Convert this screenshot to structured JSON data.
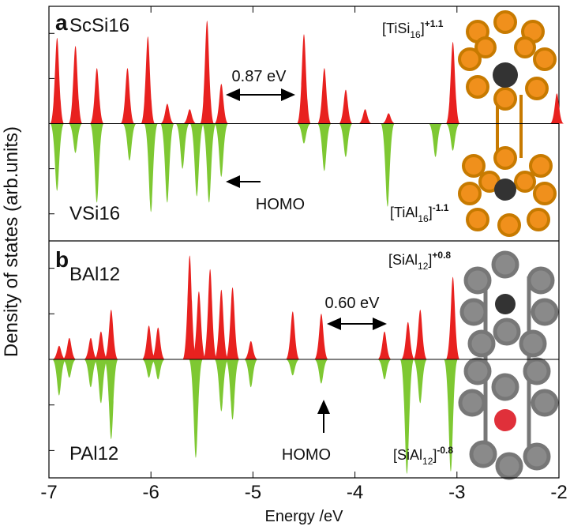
{
  "chart_data": [
    {
      "type": "area",
      "panel_label": "a",
      "xlim": [
        -7,
        -2
      ],
      "ylim": [
        -2.6,
        2.6
      ],
      "yticks": [
        -2,
        -1,
        1,
        2
      ],
      "series": [
        {
          "name": "ScSi16",
          "color": "#e8211f",
          "x": [
            -6.92,
            -6.74,
            -6.53,
            -6.23,
            -6.03,
            -5.84,
            -5.62,
            -5.45,
            -5.31,
            -4.5,
            -4.3,
            -4.09,
            -3.9,
            -3.67,
            -3.04,
            -2.02
          ],
          "values": [
            1.9,
            1.72,
            1.23,
            1.23,
            1.93,
            0.44,
            0.32,
            2.28,
            0.88,
            1.98,
            1.23,
            0.75,
            0.32,
            0.23,
            1.81,
            0.67
          ]
        },
        {
          "name": "VSi16",
          "color": "#7ec832",
          "x": [
            -6.92,
            -6.74,
            -6.53,
            -6.21,
            -6.0,
            -5.84,
            -5.69,
            -5.55,
            -5.43,
            -5.31,
            -4.5,
            -4.3,
            -4.09,
            -3.68,
            -3.21,
            -3.04
          ],
          "values": [
            -1.49,
            -0.65,
            -1.75,
            -0.82,
            -1.96,
            -1.75,
            -1.0,
            -1.61,
            -1.75,
            -1.18,
            -0.44,
            -1.05,
            -0.74,
            -1.84,
            -0.74,
            -0.6
          ]
        }
      ],
      "annotations": {
        "gap": "0.87 eV",
        "homo": "HOMO",
        "upper_formula": {
          "base": "[TiSi",
          "sub": "16",
          "end": "]",
          "sup": "+1.1"
        },
        "lower_formula": {
          "base": "[TiAl",
          "sub": "16",
          "end": "]",
          "sup": "-1.1"
        }
      },
      "ylabel": "Density of states (arb.units)"
    },
    {
      "type": "area",
      "panel_label": "b",
      "xlim": [
        -7,
        -2
      ],
      "ylim": [
        -2.6,
        2.6
      ],
      "yticks": [
        -2,
        -1,
        1,
        2
      ],
      "xticks": [
        -7,
        -6,
        -5,
        -4,
        -3,
        -2
      ],
      "xlabel": "Energy /eV",
      "series": [
        {
          "name": "BAl12",
          "color": "#e8211f",
          "x": [
            -6.9,
            -6.8,
            -6.59,
            -6.49,
            -6.39,
            -6.02,
            -5.93,
            -5.62,
            -5.53,
            -5.42,
            -5.31,
            -5.2,
            -5.02,
            -4.61,
            -4.33,
            -3.71,
            -3.48,
            -3.36,
            -3.04
          ],
          "values": [
            0.3,
            0.47,
            0.47,
            0.61,
            1.09,
            0.74,
            0.7,
            2.28,
            1.49,
            1.98,
            1.53,
            1.58,
            0.4,
            1.05,
            1.0,
            0.61,
            0.82,
            1.09,
            1.81
          ]
        },
        {
          "name": "PAl12",
          "color": "#7ec832",
          "x": [
            -6.9,
            -6.8,
            -6.59,
            -6.49,
            -6.39,
            -6.02,
            -5.93,
            -5.56,
            -5.31,
            -5.2,
            -5.02,
            -4.61,
            -4.33,
            -3.71,
            -3.49,
            -3.36,
            -3.06
          ],
          "values": [
            -0.79,
            -0.4,
            -0.61,
            -0.96,
            -1.75,
            -0.4,
            -0.44,
            -2.16,
            -1.14,
            -1.32,
            -0.61,
            -0.35,
            -0.53,
            -0.44,
            -2.51,
            -0.96,
            -2.46
          ]
        }
      ],
      "annotations": {
        "gap": "0.60 eV",
        "homo": "HOMO",
        "upper_formula": {
          "base": "[SiAl",
          "sub": "12",
          "end": "]",
          "sup": "+0.8"
        },
        "lower_formula": {
          "base": "[SiAl",
          "sub": "12",
          "end": "]",
          "sup": "-0.8"
        }
      }
    }
  ]
}
